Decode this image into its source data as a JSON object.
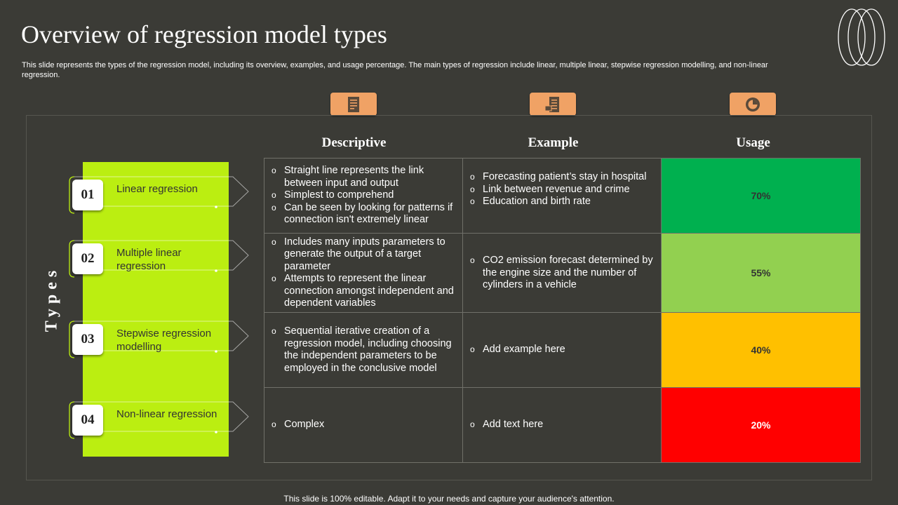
{
  "slide": {
    "title": "Overview of regression model types",
    "subtitle": "This slide represents the types of the regression model, including its overview, examples, and usage percentage. The main types of regression include linear, multiple linear, stepwise regression modelling, and non-linear regression.",
    "side_label": "Types",
    "footer": "This slide is 100% editable. Adapt it to your needs and capture your audience's attention."
  },
  "header_icons": [
    {
      "icon": "document-icon"
    },
    {
      "icon": "spreadsheet-icon"
    },
    {
      "icon": "pie-chart-icon"
    }
  ],
  "columns": [
    "Descriptive",
    "Example",
    "Usage"
  ],
  "types": [
    {
      "number": "01",
      "label": "Linear regression"
    },
    {
      "number": "02",
      "label": "Multiple linear regression"
    },
    {
      "number": "03",
      "label": "Stepwise regression modelling"
    },
    {
      "number": "04",
      "label": "Non-linear regression"
    }
  ],
  "rows": [
    {
      "descriptive": [
        "Straight line represents the link between input and output",
        "Simplest to comprehend",
        "Can be seen by looking for patterns if connection isn't extremely linear"
      ],
      "example": [
        "Forecasting patient’s stay in hospital",
        "Link between revenue and crime",
        "Education and birth rate"
      ],
      "usage": "70%"
    },
    {
      "descriptive": [
        "Includes many inputs parameters to generate the output of a target parameter",
        "Attempts to represent the linear connection amongst independent and dependent variables"
      ],
      "example": [
        "CO2 emission forecast determined by the engine size and the number of cylinders in a vehicle"
      ],
      "usage": "55%"
    },
    {
      "descriptive": [
        "Sequential iterative creation of a regression model, including choosing the independent parameters to be employed in the conclusive model"
      ],
      "example": [
        "Add example here"
      ],
      "usage": "40%"
    },
    {
      "descriptive": [
        "Complex"
      ],
      "example": [
        "Add text here"
      ],
      "usage": "20%"
    }
  ],
  "colors": {
    "background": "#3b3b36",
    "accent_green_bar": "#bbee11",
    "icon_orange": "#f0a265",
    "usage_70": "#00b04f",
    "usage_55": "#92d050",
    "usage_40": "#ffc000",
    "usage_20": "#ff0000"
  }
}
